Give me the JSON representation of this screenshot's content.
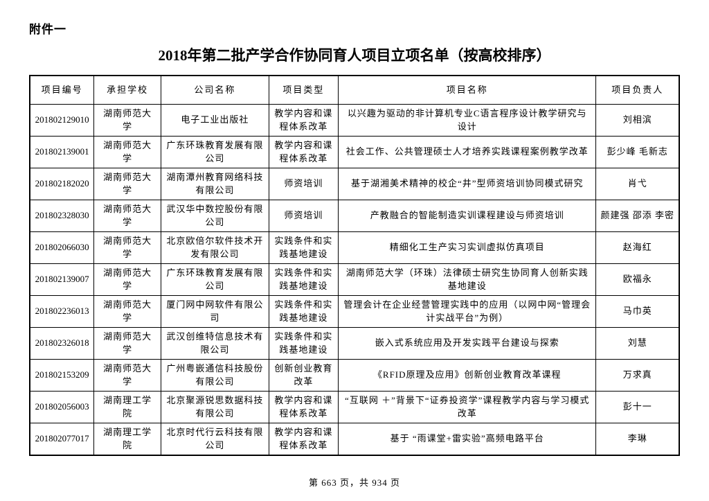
{
  "page": {
    "attachment_label": "附件一",
    "title": "2018年第二批产学合作协同育人项目立项名单（按高校排序）",
    "footer": "第 663 页，共 934 页"
  },
  "table": {
    "headers": {
      "id": "项目编号",
      "school": "承担学校",
      "company": "公司名称",
      "type": "项目类型",
      "name": "项目名称",
      "leader": "项目负责人"
    },
    "rows": [
      {
        "id": "201802129010",
        "school": "湖南师范大学",
        "company": "电子工业出版社",
        "type": "教学内容和课程体系改革",
        "name": "以兴趣为驱动的非计算机专业C语言程序设计教学研究与设计",
        "leader": "刘相滨"
      },
      {
        "id": "201802139001",
        "school": "湖南师范大学",
        "company": "广东环珠教育发展有限公司",
        "type": "教学内容和课程体系改革",
        "name": "社会工作、公共管理硕士人才培养实践课程案例教学改革",
        "leader": "彭少峰 毛新志"
      },
      {
        "id": "201802182020",
        "school": "湖南师范大学",
        "company": "湖南潭州教育网络科技有限公司",
        "type": "师资培训",
        "name": "基于湖湘美术精神的校企“井”型师资培训协同模式研究",
        "leader": "肖弋"
      },
      {
        "id": "201802328030",
        "school": "湖南师范大学",
        "company": "武汉华中数控股份有限公司",
        "type": "师资培训",
        "name": "产教融合的智能制造实训课程建设与师资培训",
        "leader": "颜建强 邵添 李密"
      },
      {
        "id": "201802066030",
        "school": "湖南师范大学",
        "company": "北京欧倍尔软件技术开发有限公司",
        "type": "实践条件和实践基地建设",
        "name": "精细化工生产实习实训虚拟仿真项目",
        "leader": "赵海红"
      },
      {
        "id": "201802139007",
        "school": "湖南师范大学",
        "company": "广东环珠教育发展有限公司",
        "type": "实践条件和实践基地建设",
        "name": "湖南师范大学（环珠）法律硕士研究生协同育人创新实践基地建设",
        "leader": "欧福永"
      },
      {
        "id": "201802236013",
        "school": "湖南师范大学",
        "company": "厦门网中网软件有限公司",
        "type": "实践条件和实践基地建设",
        "name": "管理会计在企业经营管理实践中的应用（以网中网“管理会计实战平台”为例）",
        "leader": "马巾英"
      },
      {
        "id": "201802326018",
        "school": "湖南师范大学",
        "company": "武汉创维特信息技术有限公司",
        "type": "实践条件和实践基地建设",
        "name": "嵌入式系统应用及开发实践平台建设与探索",
        "leader": "刘慧"
      },
      {
        "id": "201802153209",
        "school": "湖南师范大学",
        "company": "广州粤嵌通信科技股份有限公司",
        "type": "创新创业教育改革",
        "name": "《RFID原理及应用》创新创业教育改革课程",
        "leader": "万求真"
      },
      {
        "id": "201802056003",
        "school": "湖南理工学院",
        "company": "北京聚源锐思数据科技有限公司",
        "type": "教学内容和课程体系改革",
        "name": "“互联网 ＋”背景下“证券投资学”课程教学内容与学习模式改革",
        "leader": "彭十一"
      },
      {
        "id": "201802077017",
        "school": "湖南理工学院",
        "company": "北京时代行云科技有限公司",
        "type": "教学内容和课程体系改革",
        "name": "基于 “雨课堂+雷实验”高频电路平台",
        "leader": "李琳"
      }
    ]
  }
}
